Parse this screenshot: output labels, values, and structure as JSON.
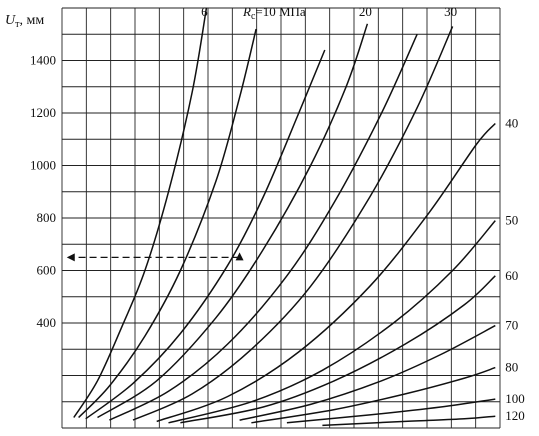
{
  "chart_data": {
    "type": "line",
    "title": "",
    "ylabel_main": "U",
    "ylabel_sub": "т",
    "ylabel_unit": ", мм",
    "xlabel": "",
    "ylim": [
      0,
      1600
    ],
    "yticks": [
      {
        "value": 400,
        "label": "400"
      },
      {
        "value": 600,
        "label": "600"
      },
      {
        "value": 800,
        "label": "800"
      },
      {
        "value": 1000,
        "label": "1000"
      },
      {
        "value": 1200,
        "label": "1200"
      },
      {
        "value": 1400,
        "label": "1400"
      }
    ],
    "param_label_prefix_main": "R",
    "param_label_prefix_sub": "c",
    "param_label_suffix": "=10 МПа",
    "series": [
      {
        "name": "6",
        "points": [
          [
            0.0,
            40
          ],
          [
            1.0,
            180
          ],
          [
            2.0,
            380
          ],
          [
            3.0,
            600
          ],
          [
            4.0,
            900
          ],
          [
            5.0,
            1280
          ],
          [
            5.6,
            1600
          ]
        ]
      },
      {
        "name": "10",
        "points": [
          [
            0.2,
            40
          ],
          [
            1.5,
            160
          ],
          [
            3.0,
            350
          ],
          [
            4.5,
            600
          ],
          [
            6.0,
            940
          ],
          [
            7.0,
            1260
          ],
          [
            7.7,
            1520
          ]
        ]
      },
      {
        "name": "",
        "points": [
          [
            0.5,
            35
          ],
          [
            2.5,
            170
          ],
          [
            4.5,
            360
          ],
          [
            6.5,
            620
          ],
          [
            8.0,
            880
          ],
          [
            9.5,
            1200
          ],
          [
            10.6,
            1440
          ]
        ]
      },
      {
        "name": "20",
        "points": [
          [
            1.0,
            40
          ],
          [
            3.5,
            180
          ],
          [
            6.0,
            420
          ],
          [
            8.0,
            680
          ],
          [
            10.0,
            1000
          ],
          [
            11.5,
            1300
          ],
          [
            12.4,
            1540
          ]
        ]
      },
      {
        "name": "",
        "points": [
          [
            1.5,
            30
          ],
          [
            4.0,
            140
          ],
          [
            6.5,
            320
          ],
          [
            9.0,
            580
          ],
          [
            11.0,
            860
          ],
          [
            13.0,
            1200
          ],
          [
            14.5,
            1500
          ]
        ]
      },
      {
        "name": "30",
        "points": [
          [
            2.5,
            30
          ],
          [
            5.0,
            130
          ],
          [
            7.5,
            300
          ],
          [
            10.0,
            540
          ],
          [
            12.5,
            880
          ],
          [
            14.5,
            1220
          ],
          [
            16.0,
            1530
          ]
        ]
      },
      {
        "name": "40",
        "points": [
          [
            3.5,
            25
          ],
          [
            6.5,
            120
          ],
          [
            9.5,
            290
          ],
          [
            12.5,
            540
          ],
          [
            15.0,
            820
          ],
          [
            17.0,
            1080
          ],
          [
            17.8,
            1160
          ]
        ]
      },
      {
        "name": "50",
        "points": [
          [
            4.0,
            20
          ],
          [
            7.5,
            100
          ],
          [
            10.5,
            220
          ],
          [
            13.5,
            400
          ],
          [
            16.0,
            600
          ],
          [
            17.8,
            790
          ]
        ]
      },
      {
        "name": "60",
        "points": [
          [
            4.5,
            20
          ],
          [
            8.0,
            80
          ],
          [
            11.0,
            180
          ],
          [
            14.0,
            320
          ],
          [
            16.5,
            470
          ],
          [
            17.8,
            580
          ]
        ]
      },
      {
        "name": "70",
        "points": [
          [
            7.0,
            30
          ],
          [
            10.0,
            90
          ],
          [
            13.0,
            180
          ],
          [
            15.5,
            280
          ],
          [
            17.8,
            390
          ]
        ]
      },
      {
        "name": "80",
        "points": [
          [
            7.5,
            20
          ],
          [
            11.0,
            70
          ],
          [
            14.0,
            130
          ],
          [
            16.5,
            190
          ],
          [
            17.8,
            230
          ]
        ]
      },
      {
        "name": "100",
        "points": [
          [
            9.0,
            20
          ],
          [
            12.5,
            50
          ],
          [
            15.5,
            80
          ],
          [
            17.8,
            110
          ]
        ]
      },
      {
        "name": "120",
        "points": [
          [
            10.5,
            10
          ],
          [
            14.0,
            25
          ],
          [
            16.5,
            35
          ],
          [
            17.8,
            45
          ]
        ]
      }
    ],
    "xlim": [
      -0.5,
      18
    ],
    "grid": true,
    "annotation": {
      "type": "dashed-arrow",
      "from_x": 7.0,
      "from_y": 650,
      "to_x": -0.3,
      "to_y": 650,
      "marker": "triangle"
    }
  }
}
